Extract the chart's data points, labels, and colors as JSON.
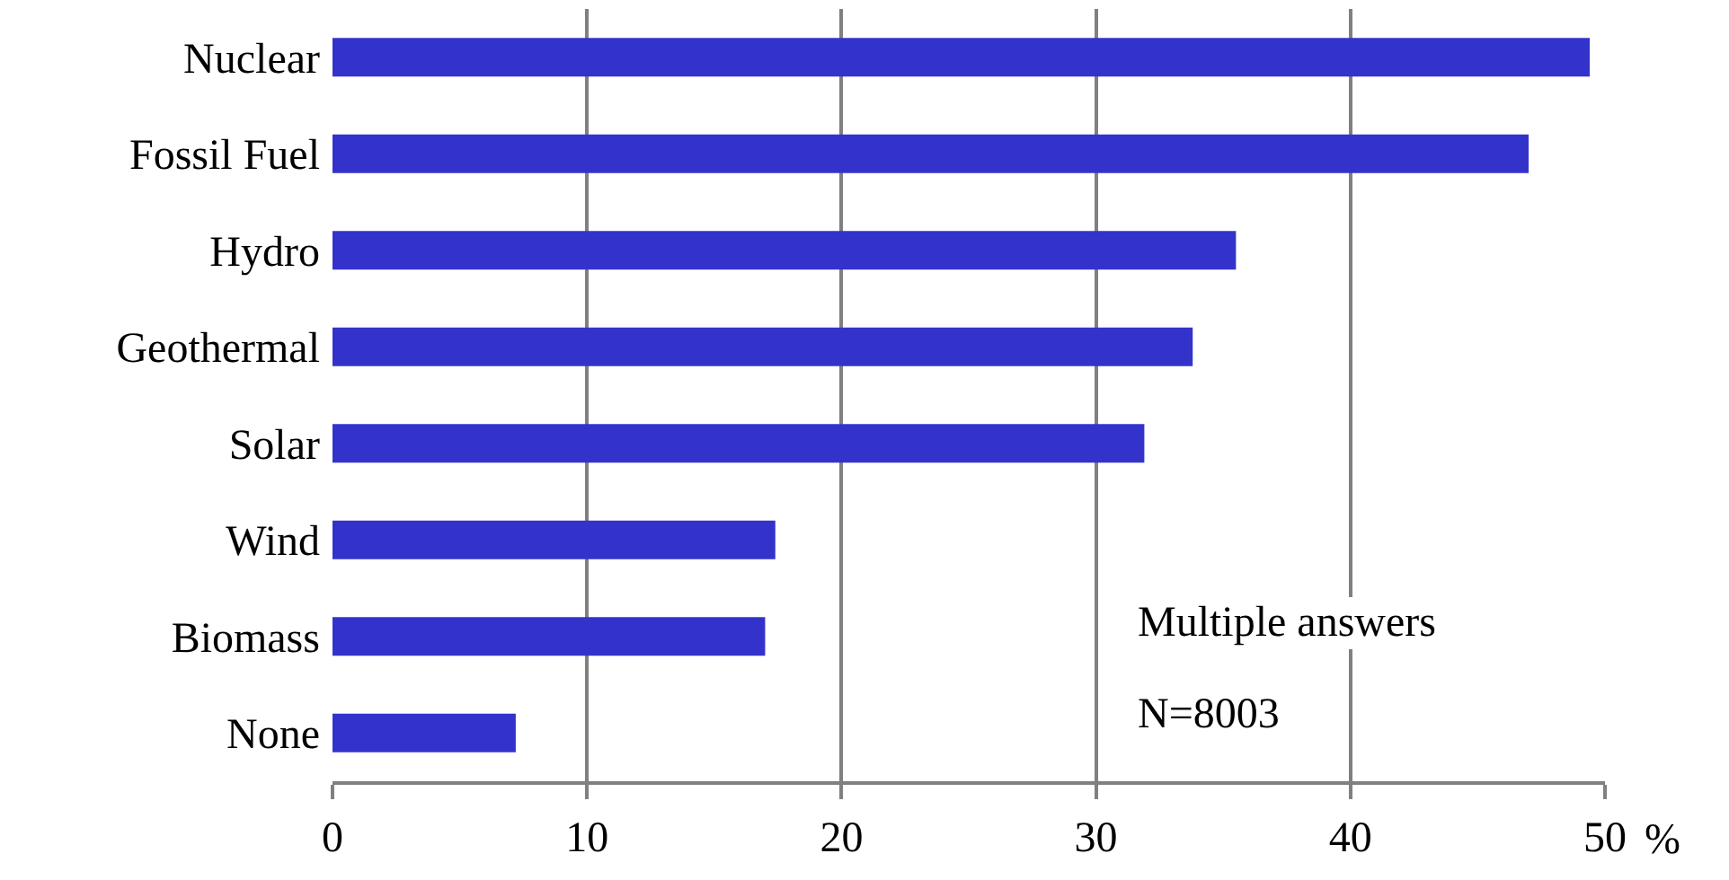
{
  "chart_data": {
    "type": "bar",
    "orientation": "horizontal",
    "categories": [
      "Nuclear",
      "Fossil Fuel",
      "Hydro",
      "Geothermal",
      "Solar",
      "Wind",
      "Biomass",
      "None"
    ],
    "values": [
      49.4,
      47.0,
      35.5,
      33.8,
      31.9,
      17.4,
      17.0,
      7.2
    ],
    "color": "#3333cc",
    "xlim": [
      0,
      50
    ],
    "xticks": [
      0,
      10,
      20,
      30,
      40,
      50
    ],
    "xlabel": "%",
    "grid": "x",
    "annotations": [
      "Multiple answers",
      "N=8003"
    ]
  }
}
